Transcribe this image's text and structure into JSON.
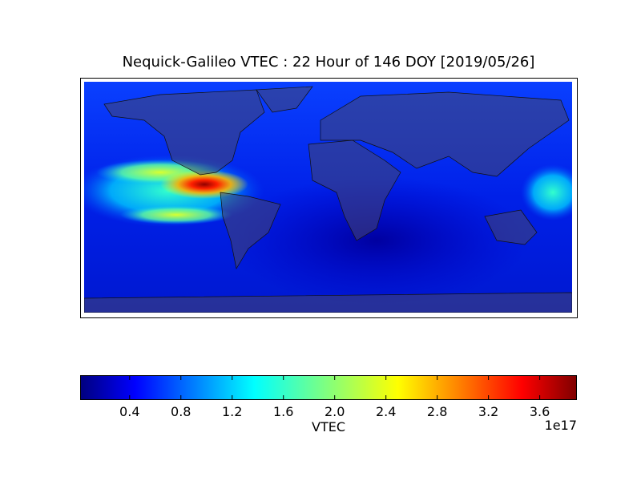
{
  "chart_data": {
    "type": "heatmap",
    "title": "Nequick-Galileo VTEC : 22 Hour of 146 DOY [2019/05/26]",
    "colorbar": {
      "label": "VTEC",
      "offset_label": "1e17",
      "lim": [
        0.02,
        3.89
      ],
      "ticks": [
        0.4,
        0.8,
        1.2,
        1.6,
        {
          "value": 2,
          "label": "2.0"
        },
        2.4,
        2.8,
        3.2,
        3.6
      ],
      "colormap": [
        "#00007f",
        "#0000ff",
        "#00ffff",
        "#ffff00",
        "#ff0000",
        "#7f0000"
      ]
    }
  }
}
